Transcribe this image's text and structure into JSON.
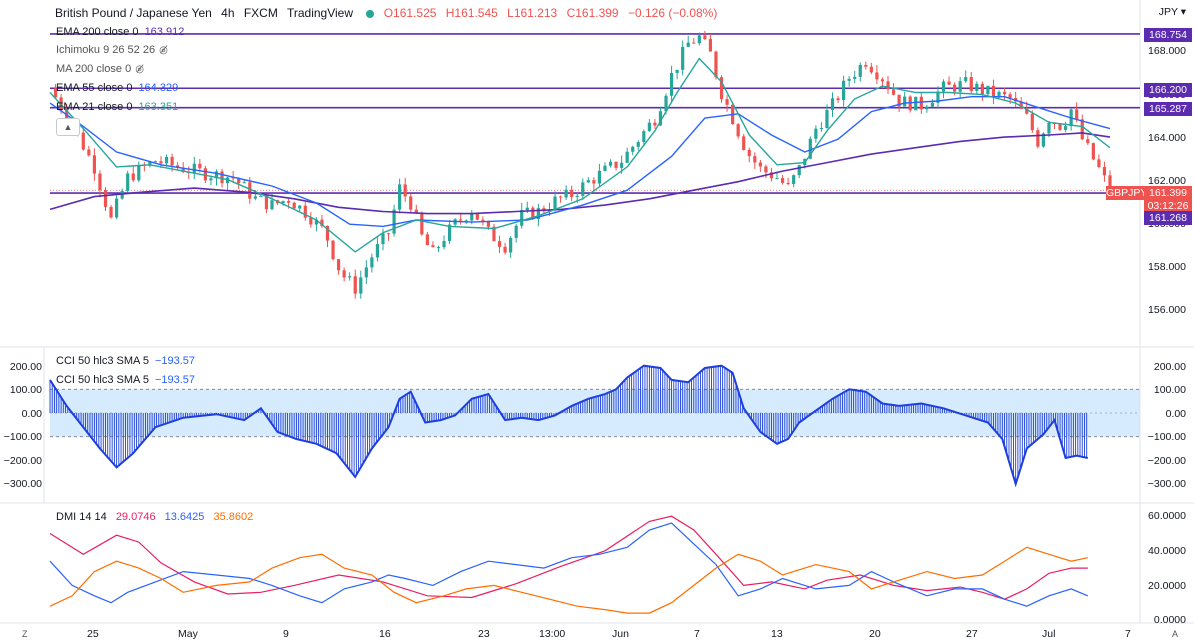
{
  "header": {
    "symbol": "British Pound / Japanese Yen",
    "interval": "4h",
    "exchange": "FXCM",
    "platform": "TradingView",
    "open": "O161.525",
    "high": "H161.545",
    "low": "L161.213",
    "close": "C161.399",
    "change": "−0.126 (−0.08%)",
    "status_color": "#26a69a"
  },
  "indicators": [
    {
      "label": "EMA 200 close 0",
      "value": "163.912",
      "color": "#5b2bb0"
    },
    {
      "label": "Ichimoku 9 26 52 26",
      "value": "",
      "color": "#555555"
    },
    {
      "label": "MA 200 close 0",
      "value": "",
      "color": "#555555"
    },
    {
      "label": "EMA 55 close 0",
      "value": "164.329",
      "color": "#2962ff"
    },
    {
      "label": "EMA 21 close 0",
      "value": "163.351",
      "color": "#26a69a"
    }
  ],
  "cci_legend": [
    {
      "label": "CCI 50 hlc3 SMA 5",
      "value": "−193.57"
    },
    {
      "label": "CCI 50 hlc3 SMA 5",
      "value": "−193.57"
    }
  ],
  "dmi_legend": {
    "label": "DMI 14 14",
    "adx": "29.0746",
    "plus_di": "13.6425",
    "minus_di": "35.8602",
    "adx_color": "#e91e63",
    "plus_color": "#2962ff",
    "minus_color": "#ff6d00"
  },
  "price_axis": {
    "currency": "JPY",
    "ticks": [
      "168.000",
      "166.000",
      "164.000",
      "162.000",
      "160.000",
      "158.000",
      "156.000"
    ],
    "tags": [
      {
        "text": "168.754",
        "price": 168.754,
        "color": "#5b2bb0"
      },
      {
        "text": "166.200",
        "price": 166.2,
        "color": "#5b2bb0"
      },
      {
        "text": "165.287",
        "price": 165.287,
        "color": "#5b2bb0"
      },
      {
        "text": "GBPJPY",
        "price": 162.15,
        "color": "#ef5350"
      },
      {
        "text": "161.399",
        "price": 161.399,
        "color": "#ef5350"
      },
      {
        "text": "03:12:26",
        "price": 160.95,
        "color": "#ef5350"
      },
      {
        "text": "161.268",
        "price": 160.1,
        "color": "#5b2bb0"
      }
    ]
  },
  "cci_axis": {
    "ticks": [
      "200.00",
      "100.00",
      "0.00",
      "−100.00",
      "−200.00",
      "−300.00"
    ]
  },
  "dmi_axis": {
    "ticks": [
      "60.0000",
      "40.0000",
      "20.0000",
      "0.0000"
    ]
  },
  "time_axis": {
    "labels": [
      "25",
      "May",
      "9",
      "16",
      "23",
      "13:00",
      "Jun",
      "7",
      "13",
      "20",
      "27",
      "Jul",
      "7"
    ]
  },
  "corner": {
    "left": "Z",
    "right": "A"
  },
  "chart_data": {
    "type": "candlestick",
    "symbol": "GBPJPY",
    "ylim": [
      155,
      169
    ],
    "horizontal_levels": [
      168.754,
      166.2,
      165.287,
      161.268
    ],
    "last_price": 161.399,
    "close_path": [
      [
        0,
        166.2
      ],
      [
        20,
        164.5
      ],
      [
        40,
        162.5
      ],
      [
        55,
        160
      ],
      [
        70,
        162
      ],
      [
        95,
        162.8
      ],
      [
        115,
        162.5
      ],
      [
        140,
        162.2
      ],
      [
        165,
        162
      ],
      [
        185,
        161
      ],
      [
        200,
        160.7
      ],
      [
        215,
        161
      ],
      [
        232,
        160.3
      ],
      [
        248,
        159.4
      ],
      [
        262,
        157.5
      ],
      [
        275,
        156.8
      ],
      [
        290,
        158.3
      ],
      [
        305,
        159.4
      ],
      [
        315,
        161.5
      ],
      [
        325,
        160.8
      ],
      [
        335,
        159.2
      ],
      [
        345,
        158.4
      ],
      [
        355,
        159.2
      ],
      [
        365,
        159.8
      ],
      [
        380,
        160.5
      ],
      [
        395,
        159.4
      ],
      [
        410,
        158.8
      ],
      [
        425,
        160.2
      ],
      [
        440,
        160.4
      ],
      [
        455,
        160.9
      ],
      [
        470,
        161.2
      ],
      [
        485,
        161.8
      ],
      [
        500,
        162.3
      ],
      [
        515,
        162.8
      ],
      [
        530,
        163.8
      ],
      [
        545,
        164.8
      ],
      [
        560,
        166.8
      ],
      [
        575,
        168.3
      ],
      [
        585,
        168.6
      ],
      [
        595,
        167.8
      ],
      [
        605,
        166
      ],
      [
        615,
        164.8
      ],
      [
        628,
        163.2
      ],
      [
        640,
        162.4
      ],
      [
        655,
        162
      ],
      [
        665,
        161.5
      ],
      [
        675,
        162.4
      ],
      [
        690,
        164.3
      ],
      [
        705,
        165.4
      ],
      [
        720,
        166.7
      ],
      [
        735,
        167.5
      ],
      [
        750,
        166.7
      ],
      [
        765,
        165.6
      ],
      [
        785,
        165.4
      ],
      [
        805,
        166.2
      ],
      [
        825,
        166.4
      ],
      [
        845,
        166
      ],
      [
        865,
        165.7
      ],
      [
        880,
        164.8
      ],
      [
        890,
        163.7
      ],
      [
        900,
        164.8
      ],
      [
        912,
        164.4
      ],
      [
        920,
        165.2
      ],
      [
        930,
        163.8
      ],
      [
        945,
        162.4
      ],
      [
        955,
        161.4
      ]
    ],
    "ema21_path": [
      [
        0,
        166
      ],
      [
        30,
        164.3
      ],
      [
        60,
        162.5
      ],
      [
        90,
        162.6
      ],
      [
        120,
        162.3
      ],
      [
        160,
        161.9
      ],
      [
        200,
        161
      ],
      [
        240,
        160
      ],
      [
        275,
        158.5
      ],
      [
        300,
        159.4
      ],
      [
        330,
        160
      ],
      [
        360,
        159.7
      ],
      [
        400,
        159.6
      ],
      [
        440,
        160.2
      ],
      [
        480,
        161
      ],
      [
        520,
        162.5
      ],
      [
        545,
        164.2
      ],
      [
        565,
        166
      ],
      [
        585,
        167.6
      ],
      [
        605,
        166.5
      ],
      [
        630,
        164
      ],
      [
        655,
        162.6
      ],
      [
        680,
        162.7
      ],
      [
        700,
        164.2
      ],
      [
        725,
        165.7
      ],
      [
        750,
        166.3
      ],
      [
        780,
        166
      ],
      [
        810,
        166
      ],
      [
        840,
        165.9
      ],
      [
        870,
        165.5
      ],
      [
        900,
        164.6
      ],
      [
        930,
        164.4
      ],
      [
        955,
        163.4
      ]
    ],
    "ema55_path": [
      [
        0,
        165.5
      ],
      [
        30,
        164.4
      ],
      [
        60,
        163.2
      ],
      [
        100,
        162.6
      ],
      [
        150,
        162.2
      ],
      [
        200,
        161.6
      ],
      [
        240,
        160.8
      ],
      [
        270,
        159.8
      ],
      [
        300,
        159.7
      ],
      [
        330,
        160
      ],
      [
        380,
        159.9
      ],
      [
        430,
        160
      ],
      [
        480,
        160.7
      ],
      [
        520,
        161.4
      ],
      [
        560,
        163
      ],
      [
        590,
        164.8
      ],
      [
        620,
        165
      ],
      [
        650,
        164
      ],
      [
        680,
        163.2
      ],
      [
        710,
        163.8
      ],
      [
        740,
        165.1
      ],
      [
        770,
        165.5
      ],
      [
        800,
        165.6
      ],
      [
        830,
        165.8
      ],
      [
        860,
        165.8
      ],
      [
        890,
        165.3
      ],
      [
        920,
        164.8
      ],
      [
        955,
        164.3
      ]
    ],
    "ema200_path": [
      [
        0,
        160.5
      ],
      [
        40,
        161.1
      ],
      [
        80,
        161.3
      ],
      [
        130,
        161.5
      ],
      [
        180,
        161.3
      ],
      [
        220,
        161
      ],
      [
        260,
        160.6
      ],
      [
        300,
        160.4
      ],
      [
        340,
        160.3
      ],
      [
        380,
        160.3
      ],
      [
        420,
        160.4
      ],
      [
        460,
        160.5
      ],
      [
        500,
        160.7
      ],
      [
        540,
        161
      ],
      [
        580,
        161.4
      ],
      [
        620,
        161.8
      ],
      [
        660,
        162.3
      ],
      [
        700,
        162.7
      ],
      [
        740,
        163.1
      ],
      [
        780,
        163.4
      ],
      [
        820,
        163.7
      ],
      [
        860,
        163.9
      ],
      [
        900,
        164
      ],
      [
        930,
        164.1
      ],
      [
        955,
        163.9
      ]
    ],
    "cci_path": [
      [
        0,
        140
      ],
      [
        15,
        30
      ],
      [
        30,
        -60
      ],
      [
        45,
        -150
      ],
      [
        60,
        -230
      ],
      [
        75,
        -170
      ],
      [
        95,
        -60
      ],
      [
        120,
        -20
      ],
      [
        150,
        -5
      ],
      [
        175,
        -30
      ],
      [
        190,
        20
      ],
      [
        205,
        -80
      ],
      [
        222,
        -110
      ],
      [
        240,
        -130
      ],
      [
        258,
        -170
      ],
      [
        275,
        -270
      ],
      [
        290,
        -150
      ],
      [
        305,
        -60
      ],
      [
        315,
        60
      ],
      [
        325,
        90
      ],
      [
        338,
        -40
      ],
      [
        352,
        -30
      ],
      [
        365,
        -10
      ],
      [
        380,
        60
      ],
      [
        395,
        80
      ],
      [
        410,
        -30
      ],
      [
        425,
        -20
      ],
      [
        440,
        -30
      ],
      [
        455,
        -10
      ],
      [
        470,
        30
      ],
      [
        485,
        60
      ],
      [
        500,
        80
      ],
      [
        510,
        100
      ],
      [
        520,
        150
      ],
      [
        535,
        200
      ],
      [
        550,
        190
      ],
      [
        560,
        140
      ],
      [
        575,
        130
      ],
      [
        590,
        190
      ],
      [
        605,
        200
      ],
      [
        615,
        170
      ],
      [
        625,
        20
      ],
      [
        640,
        -80
      ],
      [
        655,
        -130
      ],
      [
        665,
        -110
      ],
      [
        675,
        -40
      ],
      [
        690,
        10
      ],
      [
        705,
        60
      ],
      [
        720,
        100
      ],
      [
        735,
        90
      ],
      [
        750,
        40
      ],
      [
        765,
        30
      ],
      [
        785,
        40
      ],
      [
        805,
        20
      ],
      [
        825,
        -10
      ],
      [
        845,
        -40
      ],
      [
        858,
        -110
      ],
      [
        870,
        -300
      ],
      [
        880,
        -150
      ],
      [
        895,
        -90
      ],
      [
        905,
        -30
      ],
      [
        915,
        -190
      ],
      [
        925,
        -180
      ],
      [
        935,
        -190
      ]
    ],
    "adx_path": [
      [
        0,
        50
      ],
      [
        30,
        38
      ],
      [
        60,
        49
      ],
      [
        80,
        45
      ],
      [
        100,
        33
      ],
      [
        130,
        22
      ],
      [
        160,
        15
      ],
      [
        190,
        16
      ],
      [
        220,
        20
      ],
      [
        260,
        26
      ],
      [
        300,
        22
      ],
      [
        340,
        14
      ],
      [
        380,
        13
      ],
      [
        420,
        21
      ],
      [
        460,
        31
      ],
      [
        500,
        40
      ],
      [
        540,
        57
      ],
      [
        560,
        60
      ],
      [
        580,
        52
      ],
      [
        600,
        38
      ],
      [
        625,
        20
      ],
      [
        650,
        22
      ],
      [
        680,
        18
      ],
      [
        700,
        23
      ],
      [
        730,
        26
      ],
      [
        760,
        20
      ],
      [
        790,
        17
      ],
      [
        820,
        19
      ],
      [
        840,
        16
      ],
      [
        860,
        12
      ],
      [
        880,
        18
      ],
      [
        900,
        27
      ],
      [
        920,
        30
      ],
      [
        935,
        30
      ]
    ],
    "plus_di_path": [
      [
        0,
        34
      ],
      [
        20,
        20
      ],
      [
        40,
        14
      ],
      [
        55,
        10
      ],
      [
        70,
        16
      ],
      [
        95,
        22
      ],
      [
        120,
        28
      ],
      [
        150,
        26
      ],
      [
        180,
        24
      ],
      [
        200,
        20
      ],
      [
        225,
        14
      ],
      [
        245,
        10
      ],
      [
        265,
        18
      ],
      [
        290,
        22
      ],
      [
        305,
        26
      ],
      [
        320,
        24
      ],
      [
        345,
        20
      ],
      [
        370,
        28
      ],
      [
        395,
        34
      ],
      [
        420,
        32
      ],
      [
        445,
        30
      ],
      [
        470,
        36
      ],
      [
        495,
        38
      ],
      [
        520,
        42
      ],
      [
        540,
        52
      ],
      [
        560,
        56
      ],
      [
        580,
        44
      ],
      [
        600,
        32
      ],
      [
        620,
        14
      ],
      [
        640,
        18
      ],
      [
        660,
        24
      ],
      [
        690,
        18
      ],
      [
        720,
        20
      ],
      [
        740,
        28
      ],
      [
        760,
        22
      ],
      [
        790,
        14
      ],
      [
        815,
        18
      ],
      [
        840,
        18
      ],
      [
        860,
        12
      ],
      [
        880,
        8
      ],
      [
        900,
        14
      ],
      [
        920,
        18
      ],
      [
        935,
        14
      ]
    ],
    "minus_di_path": [
      [
        0,
        8
      ],
      [
        20,
        14
      ],
      [
        40,
        28
      ],
      [
        60,
        34
      ],
      [
        80,
        30
      ],
      [
        100,
        24
      ],
      [
        120,
        16
      ],
      [
        150,
        20
      ],
      [
        180,
        22
      ],
      [
        200,
        30
      ],
      [
        225,
        36
      ],
      [
        245,
        38
      ],
      [
        265,
        30
      ],
      [
        290,
        26
      ],
      [
        310,
        16
      ],
      [
        330,
        10
      ],
      [
        355,
        14
      ],
      [
        375,
        18
      ],
      [
        400,
        20
      ],
      [
        425,
        16
      ],
      [
        450,
        12
      ],
      [
        475,
        8
      ],
      [
        500,
        6
      ],
      [
        520,
        4
      ],
      [
        540,
        4
      ],
      [
        560,
        10
      ],
      [
        580,
        20
      ],
      [
        600,
        30
      ],
      [
        620,
        38
      ],
      [
        640,
        34
      ],
      [
        660,
        26
      ],
      [
        690,
        32
      ],
      [
        720,
        28
      ],
      [
        740,
        18
      ],
      [
        760,
        22
      ],
      [
        790,
        28
      ],
      [
        815,
        24
      ],
      [
        840,
        26
      ],
      [
        860,
        34
      ],
      [
        880,
        42
      ],
      [
        900,
        38
      ],
      [
        920,
        34
      ],
      [
        935,
        36
      ]
    ]
  }
}
